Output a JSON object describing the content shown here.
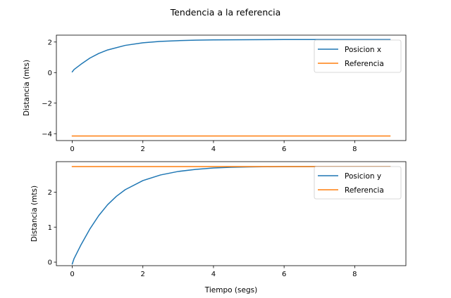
{
  "title": "Tendencia a la referencia",
  "colors": {
    "series_1": "#1f77b4",
    "series_2": "#ff7f0e",
    "legend_border": "#cccccc",
    "axes": "#000000"
  },
  "chart_data": [
    {
      "type": "line",
      "title": "",
      "xlabel": "",
      "ylabel": "Distancia (mts)",
      "xlim": [
        -0.45,
        9.45
      ],
      "ylim": [
        -4.45,
        2.45
      ],
      "xticks": [
        0,
        2,
        4,
        6,
        8
      ],
      "yticks": [
        -4,
        -2,
        0,
        2
      ],
      "xtick_labels": [
        "0",
        "2",
        "4",
        "6",
        "8"
      ],
      "ytick_labels": [
        "−4",
        "−2",
        "0",
        "2"
      ],
      "legend_position": "upper-right",
      "grid": false,
      "series": [
        {
          "name": "Posicion x",
          "color": "#1f77b4",
          "x": [
            0,
            0.05,
            0.25,
            0.5,
            0.75,
            1,
            1.5,
            2,
            2.5,
            3,
            3.5,
            4,
            5,
            6,
            7,
            8,
            9
          ],
          "y": [
            0.05,
            0.2,
            0.55,
            0.95,
            1.25,
            1.48,
            1.78,
            1.95,
            2.04,
            2.09,
            2.12,
            2.14,
            2.15,
            2.16,
            2.16,
            2.16,
            2.16
          ]
        },
        {
          "name": "Referencia",
          "color": "#ff7f0e",
          "x": [
            0,
            9
          ],
          "y": [
            -4.15,
            -4.15
          ]
        }
      ]
    },
    {
      "type": "line",
      "title": "",
      "xlabel": "Tiempo (segs)",
      "ylabel": "Distancia (mts)",
      "xlim": [
        -0.45,
        9.45
      ],
      "ylim": [
        -0.1,
        2.87
      ],
      "xticks": [
        0,
        2,
        4,
        6,
        8
      ],
      "yticks": [
        0,
        1,
        2
      ],
      "xtick_labels": [
        "0",
        "2",
        "4",
        "6",
        "8"
      ],
      "ytick_labels": [
        "0",
        "1",
        "2"
      ],
      "legend_position": "upper-right",
      "grid": false,
      "series": [
        {
          "name": "Posicion y",
          "color": "#1f77b4",
          "x": [
            0,
            0.05,
            0.25,
            0.5,
            0.75,
            1,
            1.25,
            1.5,
            2,
            2.5,
            3,
            3.5,
            4,
            4.5,
            5,
            6,
            7,
            8,
            9
          ],
          "y": [
            -0.05,
            0.1,
            0.5,
            0.95,
            1.33,
            1.64,
            1.88,
            2.07,
            2.33,
            2.49,
            2.59,
            2.65,
            2.69,
            2.71,
            2.72,
            2.73,
            2.73,
            2.73,
            2.73
          ]
        },
        {
          "name": "Referencia",
          "color": "#ff7f0e",
          "x": [
            0,
            9
          ],
          "y": [
            2.73,
            2.73
          ]
        }
      ]
    }
  ]
}
